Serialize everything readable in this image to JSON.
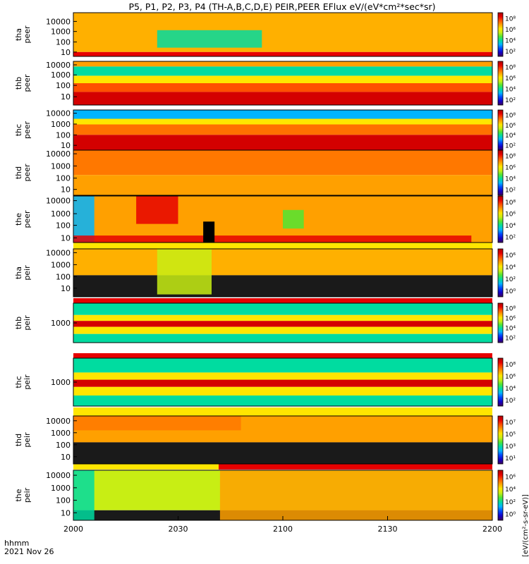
{
  "chart_data": {
    "type": "heatmap",
    "title": "P5, P1, P2, P3, P4 (TH-A,B,C,D,E) PEIR,PEER EFlux eV/(eV*cm²*sec*sr)",
    "x_axis": {
      "ticks": [
        "2000",
        "2030",
        "2100",
        "2130",
        "2200"
      ],
      "corner_label": "hhmm",
      "date_label": "2021 Nov 26"
    },
    "colorbar": {
      "scale": "log",
      "label": "[eV/(cm²-s-sr-eV)]",
      "colors": [
        "#3c005a",
        "#1400c8",
        "#0046ff",
        "#00b4ff",
        "#00dca0",
        "#50e632",
        "#c8ee14",
        "#ffe600",
        "#ffa000",
        "#ff5000",
        "#e60000",
        "#aa0000"
      ]
    },
    "panels": [
      {
        "probe": "tha",
        "species": "peer",
        "yticks": [
          "10000",
          "1000",
          "100",
          "10"
        ],
        "cbar_ticks": [
          "10⁸",
          "10⁶",
          "10⁴",
          "10²"
        ]
      },
      {
        "probe": "thb",
        "species": "peer",
        "yticks": [
          "10000",
          "1000",
          "100",
          "10"
        ],
        "cbar_ticks": [
          "10⁸",
          "10⁶",
          "10⁴",
          "10²"
        ]
      },
      {
        "probe": "thc",
        "species": "peer",
        "yticks": [
          "10000",
          "1000",
          "100",
          "10"
        ],
        "cbar_ticks": [
          "10⁸",
          "10⁶",
          "10⁴",
          "10²"
        ]
      },
      {
        "probe": "thd",
        "species": "peer",
        "yticks": [
          "10000",
          "1000",
          "100",
          "10"
        ],
        "cbar_ticks": [
          "10⁸",
          "10⁶",
          "10⁴",
          "10²"
        ]
      },
      {
        "probe": "the",
        "species": "peer",
        "yticks": [
          "10000",
          "1000",
          "100",
          "10"
        ],
        "cbar_ticks": [
          "10⁸",
          "10⁶",
          "10⁴",
          "10²"
        ]
      },
      {
        "probe": "tha",
        "species": "peir",
        "yticks": [
          "10000",
          "1000",
          "100",
          "10"
        ],
        "cbar_ticks": [
          "10⁶",
          "10⁴",
          "10²",
          "10⁰"
        ]
      },
      {
        "probe": "thb",
        "species": "peir",
        "yticks": [
          "1000"
        ],
        "cbar_ticks": [
          "10⁸",
          "10⁶",
          "10⁴",
          "10²"
        ]
      },
      {
        "probe": "thc",
        "species": "peir",
        "yticks": [
          "1000"
        ],
        "cbar_ticks": [
          "10⁸",
          "10⁶",
          "10⁴",
          "10²"
        ]
      },
      {
        "probe": "thd",
        "species": "peir",
        "yticks": [
          "10000",
          "1000",
          "100",
          "10"
        ],
        "cbar_ticks": [
          "10⁷",
          "10⁵",
          "10³",
          "10¹"
        ]
      },
      {
        "probe": "the",
        "species": "peir",
        "yticks": [
          "10000",
          "1000",
          "100",
          "10"
        ],
        "cbar_ticks": [
          "10⁶",
          "10⁴",
          "10²",
          "10⁰"
        ]
      }
    ]
  }
}
